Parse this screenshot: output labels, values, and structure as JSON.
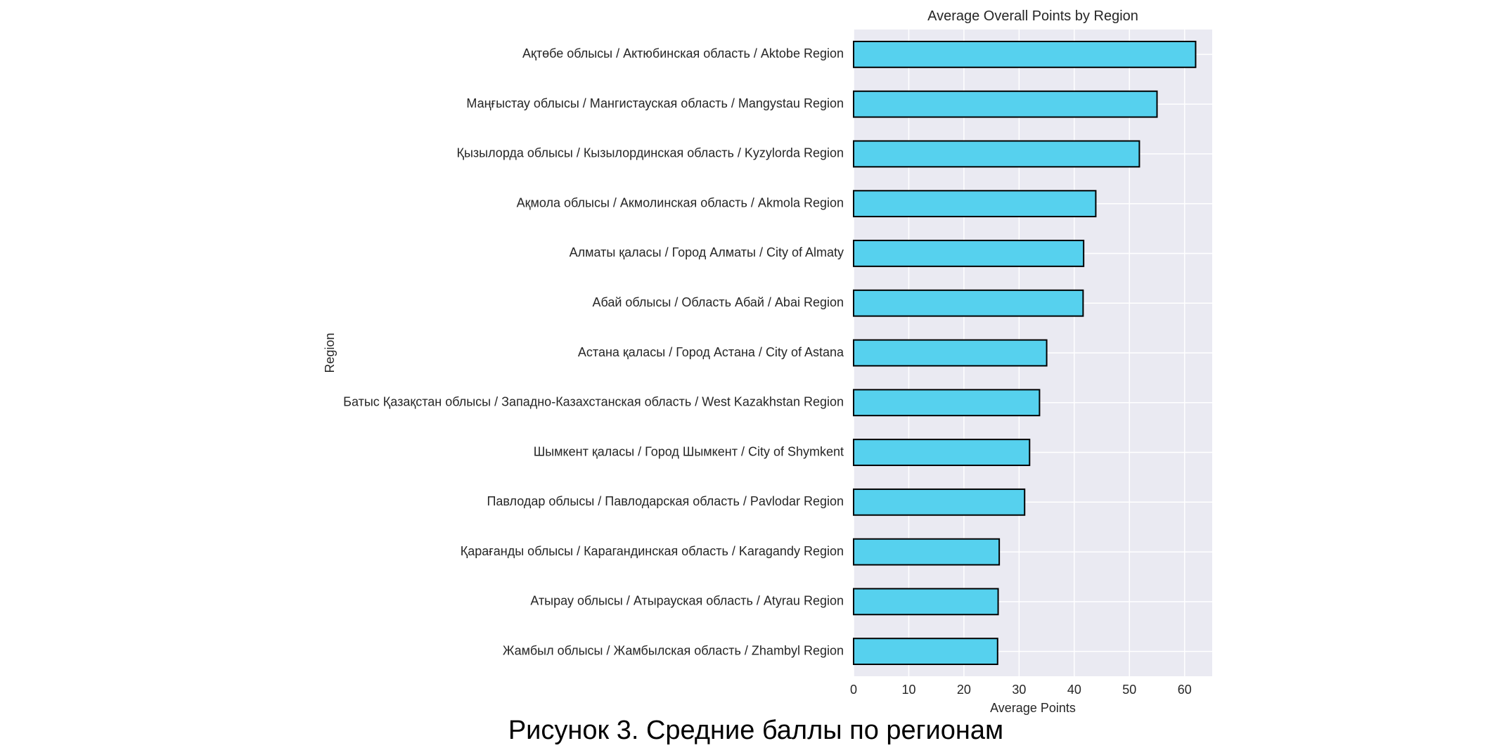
{
  "chart_data": {
    "type": "bar",
    "orientation": "horizontal",
    "title": "Average Overall Points by Region",
    "xlabel": "Average Points",
    "ylabel": "Region",
    "xlim": [
      0,
      65
    ],
    "xticks": [
      0,
      10,
      20,
      30,
      40,
      50,
      60
    ],
    "grid": true,
    "legend": "none",
    "bar_color": "#56D1EE",
    "bar_edge_color": "#000000",
    "plot_background": "#EAEAF2",
    "categories": [
      "Ақтөбе облысы / Актюбинская область / Aktobe Region",
      "Маңғыстау облысы / Мангистауская область / Mangystau Region",
      "Қызылорда облысы / Кызылординская область / Kyzylorda Region",
      "Ақмола облысы / Акмолинская область / Akmola Region",
      "Алматы қаласы / Город Алматы / City of Almaty",
      "Абай облысы / Область Абай / Abai Region",
      "Астана қаласы / Город Астана / City of Astana",
      "Батыс Қазақстан облысы / Западно-Казахстанская область / West Kazakhstan Region",
      "Шымкент қаласы / Город Шымкент / City of Shymkent",
      "Павлодар облысы / Павлодарская область / Pavlodar Region",
      "Қарағанды облысы / Карагандинская область / Karagandy Region",
      "Атырау облысы / Атырауская область / Atyrau Region",
      "Жамбыл облысы / Жамбылская область / Zhambyl Region"
    ],
    "values": [
      62.0,
      55.0,
      51.8,
      43.9,
      41.7,
      41.6,
      35.0,
      33.7,
      31.9,
      31.0,
      26.4,
      26.2,
      26.1
    ]
  },
  "figure_caption": "Рисунок 3. Средние баллы по регионам"
}
